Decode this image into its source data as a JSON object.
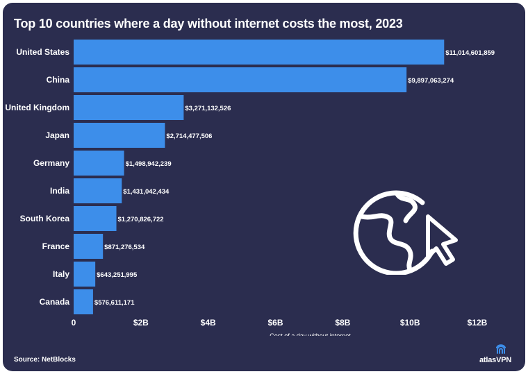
{
  "title": "Top 10 countries where a day without internet costs the most, 2023",
  "source": "Source: NetBlocks",
  "brand": {
    "name": "atlasVPN",
    "logo_icon": "atlas-vpn-logo-icon"
  },
  "decor_icon": "globe-cursor-icon",
  "colors": {
    "background": "#2b2d4f",
    "bar": "#3d8eea",
    "text": "#ffffff"
  },
  "chart_data": {
    "type": "bar",
    "orientation": "horizontal",
    "categories": [
      "United States",
      "China",
      "United Kingdom",
      "Japan",
      "Germany",
      "India",
      "South Korea",
      "France",
      "Italy",
      "Canada"
    ],
    "values": [
      11014601859,
      9897063274,
      3271132526,
      2714477506,
      1498942239,
      1431042434,
      1270826722,
      871276534,
      643251995,
      576611171
    ],
    "data_labels": [
      "$11,014,601,859",
      "$9,897,063,274",
      "$3,271,132,526",
      "$2,714,477,506",
      "$1,498,942,239",
      "$1,431,042,434",
      "$1,270,826,722",
      "$871,276,534",
      "$643,251,995",
      "$576,611,171"
    ],
    "xlabel": "Cost of a day without internet",
    "ylabel": "",
    "xlim": [
      0,
      12000000000
    ],
    "ticks": [
      0,
      2000000000,
      4000000000,
      6000000000,
      8000000000,
      10000000000,
      12000000000
    ],
    "tick_labels": [
      "0",
      "$2B",
      "$4B",
      "$6B",
      "$8B",
      "$10B",
      "$12B"
    ],
    "grid": false,
    "legend": "none"
  }
}
